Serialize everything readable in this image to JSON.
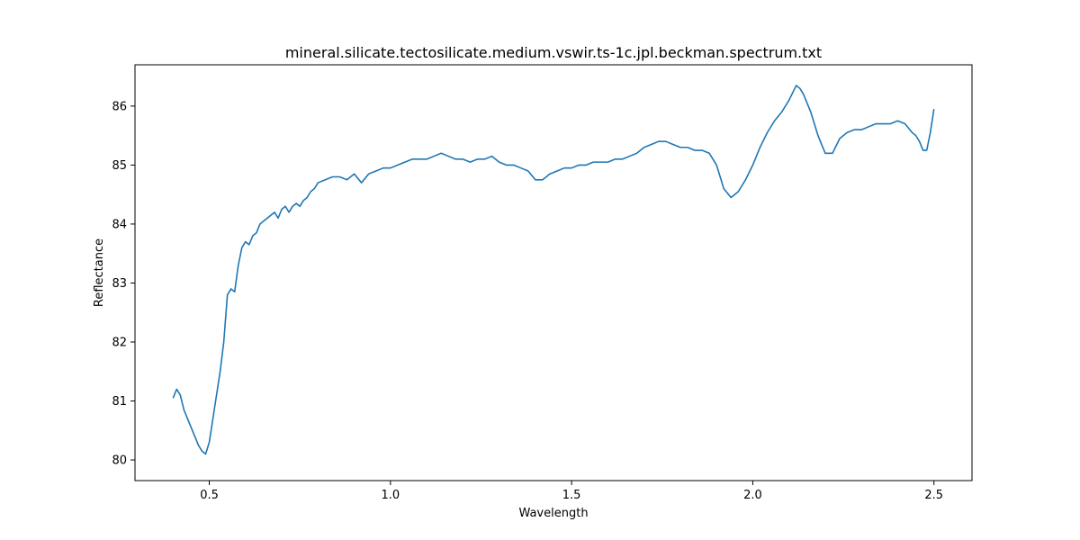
{
  "chart_data": {
    "type": "line",
    "title": "mineral.silicate.tectosilicate.medium.vswir.ts-1c.jpl.beckman.spectrum.txt",
    "xlabel": "Wavelength",
    "ylabel": "Reflectance",
    "xlim": [
      0.295,
      2.605
    ],
    "ylim": [
      79.65,
      86.7
    ],
    "xticks": [
      0.5,
      1.0,
      1.5,
      2.0,
      2.5
    ],
    "xtick_labels": [
      "0.5",
      "1.0",
      "1.5",
      "2.0",
      "2.5"
    ],
    "yticks": [
      80,
      81,
      82,
      83,
      84,
      85,
      86
    ],
    "ytick_labels": [
      "80",
      "81",
      "82",
      "83",
      "84",
      "85",
      "86"
    ],
    "grid": false,
    "line_color": "#1f77b4",
    "series": [
      {
        "x": [
          0.4,
          0.41,
          0.42,
          0.43,
          0.44,
          0.45,
          0.46,
          0.47,
          0.48,
          0.49,
          0.5,
          0.51,
          0.52,
          0.53,
          0.54,
          0.55,
          0.56,
          0.57,
          0.58,
          0.59,
          0.6,
          0.61,
          0.62,
          0.63,
          0.64,
          0.65,
          0.66,
          0.67,
          0.68,
          0.69,
          0.7,
          0.71,
          0.72,
          0.73,
          0.74,
          0.75,
          0.76,
          0.77,
          0.78,
          0.79,
          0.8,
          0.82,
          0.84,
          0.86,
          0.88,
          0.9,
          0.92,
          0.94,
          0.96,
          0.98,
          1.0,
          1.02,
          1.04,
          1.06,
          1.08,
          1.1,
          1.12,
          1.14,
          1.16,
          1.18,
          1.2,
          1.22,
          1.24,
          1.26,
          1.28,
          1.3,
          1.32,
          1.34,
          1.36,
          1.38,
          1.4,
          1.42,
          1.44,
          1.46,
          1.48,
          1.5,
          1.52,
          1.54,
          1.56,
          1.58,
          1.6,
          1.62,
          1.64,
          1.66,
          1.68,
          1.7,
          1.72,
          1.74,
          1.76,
          1.78,
          1.8,
          1.82,
          1.84,
          1.86,
          1.88,
          1.9,
          1.92,
          1.94,
          1.96,
          1.98,
          2.0,
          2.02,
          2.04,
          2.06,
          2.08,
          2.1,
          2.12,
          2.13,
          2.14,
          2.16,
          2.18,
          2.2,
          2.22,
          2.24,
          2.26,
          2.28,
          2.3,
          2.32,
          2.34,
          2.36,
          2.38,
          2.4,
          2.42,
          2.44,
          2.45,
          2.46,
          2.47,
          2.48,
          2.49,
          2.5
        ],
        "y": [
          81.05,
          81.2,
          81.1,
          80.85,
          80.7,
          80.55,
          80.4,
          80.25,
          80.15,
          80.1,
          80.3,
          80.7,
          81.1,
          81.5,
          82.0,
          82.8,
          82.9,
          82.85,
          83.3,
          83.6,
          83.7,
          83.65,
          83.8,
          83.85,
          84.0,
          84.05,
          84.1,
          84.15,
          84.2,
          84.1,
          84.25,
          84.3,
          84.2,
          84.3,
          84.35,
          84.3,
          84.4,
          84.45,
          84.55,
          84.6,
          84.7,
          84.75,
          84.8,
          84.8,
          84.75,
          84.85,
          84.7,
          84.85,
          84.9,
          84.95,
          84.95,
          85.0,
          85.05,
          85.1,
          85.1,
          85.1,
          85.15,
          85.2,
          85.15,
          85.1,
          85.1,
          85.05,
          85.1,
          85.1,
          85.15,
          85.05,
          85.0,
          85.0,
          84.95,
          84.9,
          84.75,
          84.75,
          84.85,
          84.9,
          84.95,
          84.95,
          85.0,
          85.0,
          85.05,
          85.05,
          85.05,
          85.1,
          85.1,
          85.15,
          85.2,
          85.3,
          85.35,
          85.4,
          85.4,
          85.35,
          85.3,
          85.3,
          85.25,
          85.25,
          85.2,
          85.0,
          84.6,
          84.45,
          84.55,
          84.75,
          85.0,
          85.3,
          85.55,
          85.75,
          85.9,
          86.1,
          86.35,
          86.3,
          86.2,
          85.9,
          85.5,
          85.2,
          85.2,
          85.45,
          85.55,
          85.6,
          85.6,
          85.65,
          85.7,
          85.7,
          85.7,
          85.75,
          85.7,
          85.55,
          85.5,
          85.4,
          85.25,
          85.25,
          85.55,
          85.95
        ]
      }
    ]
  }
}
